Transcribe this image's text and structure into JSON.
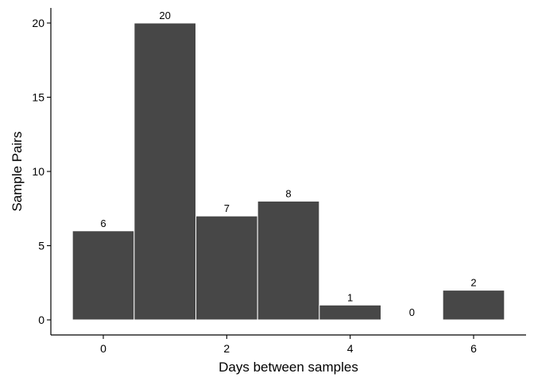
{
  "chart_data": {
    "type": "bar",
    "title": "",
    "xlabel": "Days between samples",
    "ylabel": "Sample Pairs",
    "x": [
      0,
      1,
      2,
      3,
      4,
      5,
      6
    ],
    "values": [
      6,
      20,
      7,
      8,
      1,
      0,
      2
    ],
    "data_labels": [
      "6",
      "20",
      "7",
      "8",
      "1",
      "0",
      "2"
    ],
    "xlim": [
      -0.5,
      6.5
    ],
    "ylim": [
      0,
      21
    ],
    "x_ticks": [
      0,
      2,
      4,
      6
    ],
    "x_tick_labels": [
      "0",
      "2",
      "4",
      "6"
    ],
    "y_ticks": [
      0,
      5,
      10,
      15,
      20
    ],
    "y_tick_labels": [
      "0",
      "5",
      "10",
      "15",
      "20"
    ],
    "bar_color": "#474747",
    "grid": false,
    "legend": "none"
  }
}
